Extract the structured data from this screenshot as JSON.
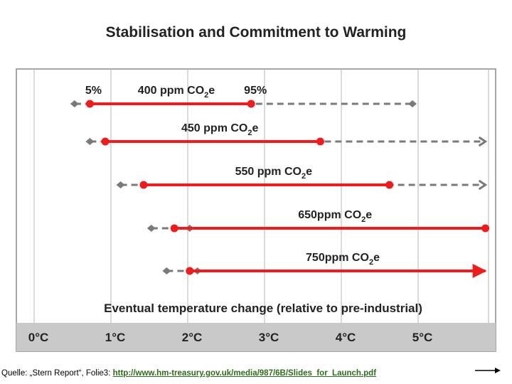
{
  "chart_data": {
    "type": "range",
    "title": "Stabilisation and Commitment to Warming",
    "xlabel": "Eventual temperature change (relative to pre-industrial)",
    "xlim": [
      -0.15,
      5.95
    ],
    "ticks": [
      {
        "value": 0,
        "label": "0°C"
      },
      {
        "value": 1,
        "label": "1°C"
      },
      {
        "value": 2,
        "label": "2°C"
      },
      {
        "value": 3,
        "label": "3°C"
      },
      {
        "value": 4,
        "label": "4°C"
      },
      {
        "value": 5,
        "label": "5°C"
      }
    ],
    "percentile_labels": {
      "low": "5%",
      "high": "95%"
    },
    "series": [
      {
        "name": "400 ppm CO2e",
        "label_main": "400 ppm CO",
        "label_sub": "2",
        "label_tail": "e",
        "range_low": 0.8,
        "range_high": 2.9,
        "range_open_end": false,
        "outer_low": 0.6,
        "outer_high": 5.0,
        "outer_open_end": false
      },
      {
        "name": "450 ppm CO2e",
        "label_main": "450 ppm CO",
        "label_sub": "2",
        "label_tail": "e",
        "range_low": 1.0,
        "range_high": 3.8,
        "range_open_end": false,
        "outer_low": 0.8,
        "outer_high": 5.95,
        "outer_open_end": true
      },
      {
        "name": "550 ppm CO2e",
        "label_main": "550 ppm CO",
        "label_sub": "2",
        "label_tail": "e",
        "range_low": 1.5,
        "range_high": 4.7,
        "range_open_end": false,
        "outer_low": 1.2,
        "outer_high": 5.95,
        "outer_open_end": true
      },
      {
        "name": "650ppm CO2e",
        "label_main": "650ppm CO",
        "label_sub": "2",
        "label_tail": "e",
        "range_low": 1.9,
        "range_high": 5.95,
        "range_open_end": false,
        "outer_low": 1.6,
        "outer_high": 2.1,
        "outer_open_end": false
      },
      {
        "name": "750ppm CO2e",
        "label_main": "750ppm CO",
        "label_sub": "2",
        "label_tail": "e",
        "range_low": 2.1,
        "range_high": 5.95,
        "range_open_end": true,
        "outer_low": 1.8,
        "outer_high": 2.2,
        "outer_open_end": false
      }
    ]
  },
  "colors": {
    "range": "#ee1c1c",
    "outer": "#7a7a7a",
    "axis_band": "#c9c9c9",
    "grid": "#b4b4b4",
    "link": "#2e6b1e"
  },
  "source": {
    "prefix": "Quelle: „Stern Report“, Folie3:",
    "link": "http://www.hm-treasury.gov.uk/media/987/6B/Slides_for_Launch.pdf"
  }
}
